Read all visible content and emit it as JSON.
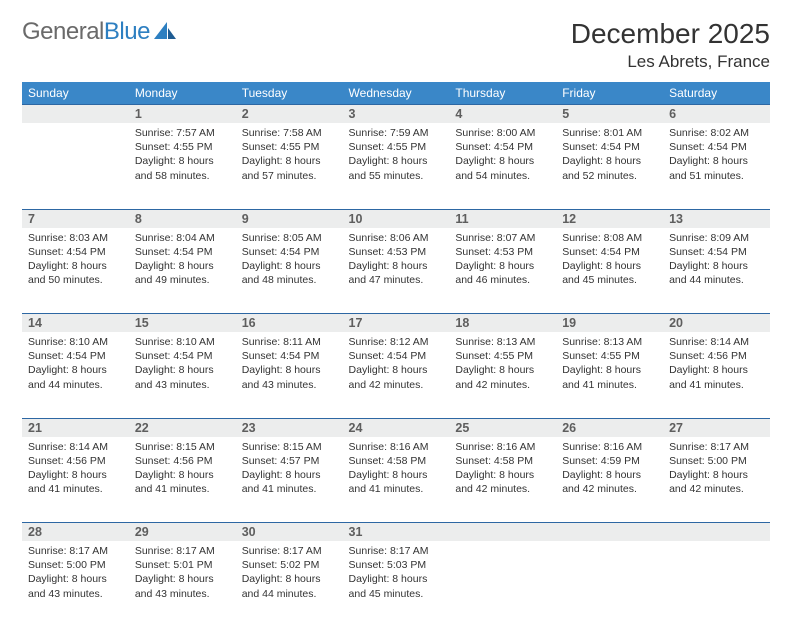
{
  "brand": {
    "part1": "General",
    "part2": "Blue"
  },
  "title": "December 2025",
  "location": "Les Abrets, France",
  "colors": {
    "header_bg": "#3a87c8",
    "header_text": "#ffffff",
    "daynum_bg": "#eceded",
    "row_border": "#2d67a3",
    "body_text": "#333333",
    "logo_gray": "#6a6a6a",
    "logo_blue": "#2d7fc1"
  },
  "day_headers": [
    "Sunday",
    "Monday",
    "Tuesday",
    "Wednesday",
    "Thursday",
    "Friday",
    "Saturday"
  ],
  "start_weekday": 1,
  "days": [
    {
      "n": 1,
      "sunrise": "7:57 AM",
      "sunset": "4:55 PM",
      "dl": "8 hours and 58 minutes."
    },
    {
      "n": 2,
      "sunrise": "7:58 AM",
      "sunset": "4:55 PM",
      "dl": "8 hours and 57 minutes."
    },
    {
      "n": 3,
      "sunrise": "7:59 AM",
      "sunset": "4:55 PM",
      "dl": "8 hours and 55 minutes."
    },
    {
      "n": 4,
      "sunrise": "8:00 AM",
      "sunset": "4:54 PM",
      "dl": "8 hours and 54 minutes."
    },
    {
      "n": 5,
      "sunrise": "8:01 AM",
      "sunset": "4:54 PM",
      "dl": "8 hours and 52 minutes."
    },
    {
      "n": 6,
      "sunrise": "8:02 AM",
      "sunset": "4:54 PM",
      "dl": "8 hours and 51 minutes."
    },
    {
      "n": 7,
      "sunrise": "8:03 AM",
      "sunset": "4:54 PM",
      "dl": "8 hours and 50 minutes."
    },
    {
      "n": 8,
      "sunrise": "8:04 AM",
      "sunset": "4:54 PM",
      "dl": "8 hours and 49 minutes."
    },
    {
      "n": 9,
      "sunrise": "8:05 AM",
      "sunset": "4:54 PM",
      "dl": "8 hours and 48 minutes."
    },
    {
      "n": 10,
      "sunrise": "8:06 AM",
      "sunset": "4:53 PM",
      "dl": "8 hours and 47 minutes."
    },
    {
      "n": 11,
      "sunrise": "8:07 AM",
      "sunset": "4:53 PM",
      "dl": "8 hours and 46 minutes."
    },
    {
      "n": 12,
      "sunrise": "8:08 AM",
      "sunset": "4:54 PM",
      "dl": "8 hours and 45 minutes."
    },
    {
      "n": 13,
      "sunrise": "8:09 AM",
      "sunset": "4:54 PM",
      "dl": "8 hours and 44 minutes."
    },
    {
      "n": 14,
      "sunrise": "8:10 AM",
      "sunset": "4:54 PM",
      "dl": "8 hours and 44 minutes."
    },
    {
      "n": 15,
      "sunrise": "8:10 AM",
      "sunset": "4:54 PM",
      "dl": "8 hours and 43 minutes."
    },
    {
      "n": 16,
      "sunrise": "8:11 AM",
      "sunset": "4:54 PM",
      "dl": "8 hours and 43 minutes."
    },
    {
      "n": 17,
      "sunrise": "8:12 AM",
      "sunset": "4:54 PM",
      "dl": "8 hours and 42 minutes."
    },
    {
      "n": 18,
      "sunrise": "8:13 AM",
      "sunset": "4:55 PM",
      "dl": "8 hours and 42 minutes."
    },
    {
      "n": 19,
      "sunrise": "8:13 AM",
      "sunset": "4:55 PM",
      "dl": "8 hours and 41 minutes."
    },
    {
      "n": 20,
      "sunrise": "8:14 AM",
      "sunset": "4:56 PM",
      "dl": "8 hours and 41 minutes."
    },
    {
      "n": 21,
      "sunrise": "8:14 AM",
      "sunset": "4:56 PM",
      "dl": "8 hours and 41 minutes."
    },
    {
      "n": 22,
      "sunrise": "8:15 AM",
      "sunset": "4:56 PM",
      "dl": "8 hours and 41 minutes."
    },
    {
      "n": 23,
      "sunrise": "8:15 AM",
      "sunset": "4:57 PM",
      "dl": "8 hours and 41 minutes."
    },
    {
      "n": 24,
      "sunrise": "8:16 AM",
      "sunset": "4:58 PM",
      "dl": "8 hours and 41 minutes."
    },
    {
      "n": 25,
      "sunrise": "8:16 AM",
      "sunset": "4:58 PM",
      "dl": "8 hours and 42 minutes."
    },
    {
      "n": 26,
      "sunrise": "8:16 AM",
      "sunset": "4:59 PM",
      "dl": "8 hours and 42 minutes."
    },
    {
      "n": 27,
      "sunrise": "8:17 AM",
      "sunset": "5:00 PM",
      "dl": "8 hours and 42 minutes."
    },
    {
      "n": 28,
      "sunrise": "8:17 AM",
      "sunset": "5:00 PM",
      "dl": "8 hours and 43 minutes."
    },
    {
      "n": 29,
      "sunrise": "8:17 AM",
      "sunset": "5:01 PM",
      "dl": "8 hours and 43 minutes."
    },
    {
      "n": 30,
      "sunrise": "8:17 AM",
      "sunset": "5:02 PM",
      "dl": "8 hours and 44 minutes."
    },
    {
      "n": 31,
      "sunrise": "8:17 AM",
      "sunset": "5:03 PM",
      "dl": "8 hours and 45 minutes."
    }
  ],
  "labels": {
    "sunrise": "Sunrise:",
    "sunset": "Sunset:",
    "daylight": "Daylight:"
  }
}
